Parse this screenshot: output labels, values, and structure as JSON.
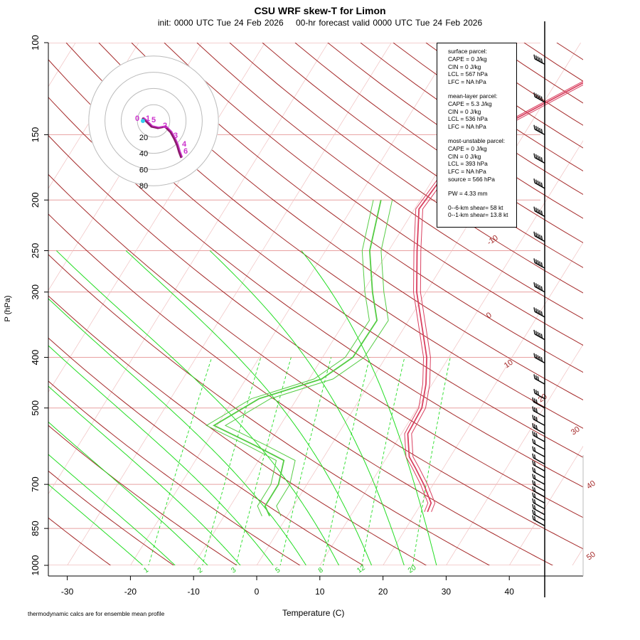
{
  "chart_data": {
    "type": "line",
    "title": "CSU WRF skew-T for Limon",
    "subtitle_init": "init: 0000 UTC Tue 24 Feb 2026",
    "subtitle_valid": "00-hr forecast valid 0000 UTC Tue 24 Feb 2026",
    "xlabel": "Temperature (C)",
    "ylabel": "P (hPa)",
    "x_ticks": [
      "-30",
      "-20",
      "-10",
      "0",
      "10",
      "20",
      "30",
      "40"
    ],
    "x_tick_values": [
      -30,
      -20,
      -10,
      0,
      10,
      20,
      30,
      40
    ],
    "y_ticks": [
      "100",
      "150",
      "200",
      "250",
      "300",
      "400",
      "500",
      "700",
      "850",
      "1000"
    ],
    "y_tick_values": [
      100,
      150,
      200,
      250,
      300,
      400,
      500,
      700,
      850,
      1000
    ],
    "isotherm_labels": [
      "-10",
      "0",
      "10",
      "20",
      "30",
      "40",
      "50"
    ],
    "isotherm_label_values": [
      -10,
      0,
      10,
      20,
      30,
      40,
      50
    ],
    "mixing_ratio_labels": [
      "1",
      "2",
      "3",
      "5",
      "8",
      "12",
      "20"
    ],
    "hodograph_ring_labels": [
      "20",
      "40",
      "60",
      "80"
    ],
    "hodograph_ring_values": [
      20,
      40,
      60,
      80
    ],
    "temperature_profile": [
      {
        "p": 115,
        "t": 6.0
      },
      {
        "p": 150,
        "t": -6.0
      },
      {
        "p": 180,
        "t": -8.7
      },
      {
        "p": 208,
        "t": -9.3
      },
      {
        "p": 250,
        "t": -5.5
      },
      {
        "p": 300,
        "t": -1.5
      },
      {
        "p": 400,
        "t": 6.5
      },
      {
        "p": 450,
        "t": 9.0
      },
      {
        "p": 500,
        "t": 10.7
      },
      {
        "p": 560,
        "t": 11.0
      },
      {
        "p": 620,
        "t": 13.5
      },
      {
        "p": 650,
        "t": 15.5
      },
      {
        "p": 700,
        "t": 18.5
      },
      {
        "p": 760,
        "t": 21.5
      },
      {
        "p": 790,
        "t": 21.8
      }
    ],
    "dewpoint_profile": [
      {
        "p": 200,
        "t": -16.2
      },
      {
        "p": 250,
        "t": -13.0
      },
      {
        "p": 300,
        "t": -8.5
      },
      {
        "p": 340,
        "t": -5.0
      },
      {
        "p": 400,
        "t": -5.2
      },
      {
        "p": 440,
        "t": -8.0
      },
      {
        "p": 480,
        "t": -16.0
      },
      {
        "p": 540,
        "t": -20.5
      },
      {
        "p": 590,
        "t": -12.0
      },
      {
        "p": 630,
        "t": -6.0
      },
      {
        "p": 700,
        "t": -4.5
      },
      {
        "p": 770,
        "t": -4.5
      },
      {
        "p": 805,
        "t": -2.8
      }
    ],
    "legend": {
      "surface": [
        "surface parcel:",
        "CAPE = 0 J/kg",
        "CIN = 0 J/kg",
        "LCL = 567 hPa",
        "LFC = NA hPa"
      ],
      "mean_layer": [
        "mean-layer parcel:",
        "CAPE = 5.3 J/kg",
        "CIN = 0 J/kg",
        "LCL = 536 hPa",
        "LFC = NA hPa"
      ],
      "most_unstable": [
        "most-unstable parcel:",
        "CAPE = 0 J/kg",
        "CIN = 0 J/kg",
        "LCL = 393 hPa",
        "LFC = NA hPa",
        "source = 566 hPa"
      ],
      "pw": "PW =  4.33 mm",
      "shear": [
        "0--6-km shear= 58 kt",
        "0--1-km shear= 13.8 kt"
      ]
    },
    "footnote": "thermodynamic calcs are for ensemble mean profile",
    "colors": {
      "isotherm": "#a52a2a",
      "isobar": "#e8a0a0",
      "dry_adiabat": "#a52a2a",
      "moist_adiabat": "#22dd22",
      "temperature": "#d94060",
      "dewpoint": "#55cc44",
      "hodograph": "#8b1a6b"
    }
  }
}
